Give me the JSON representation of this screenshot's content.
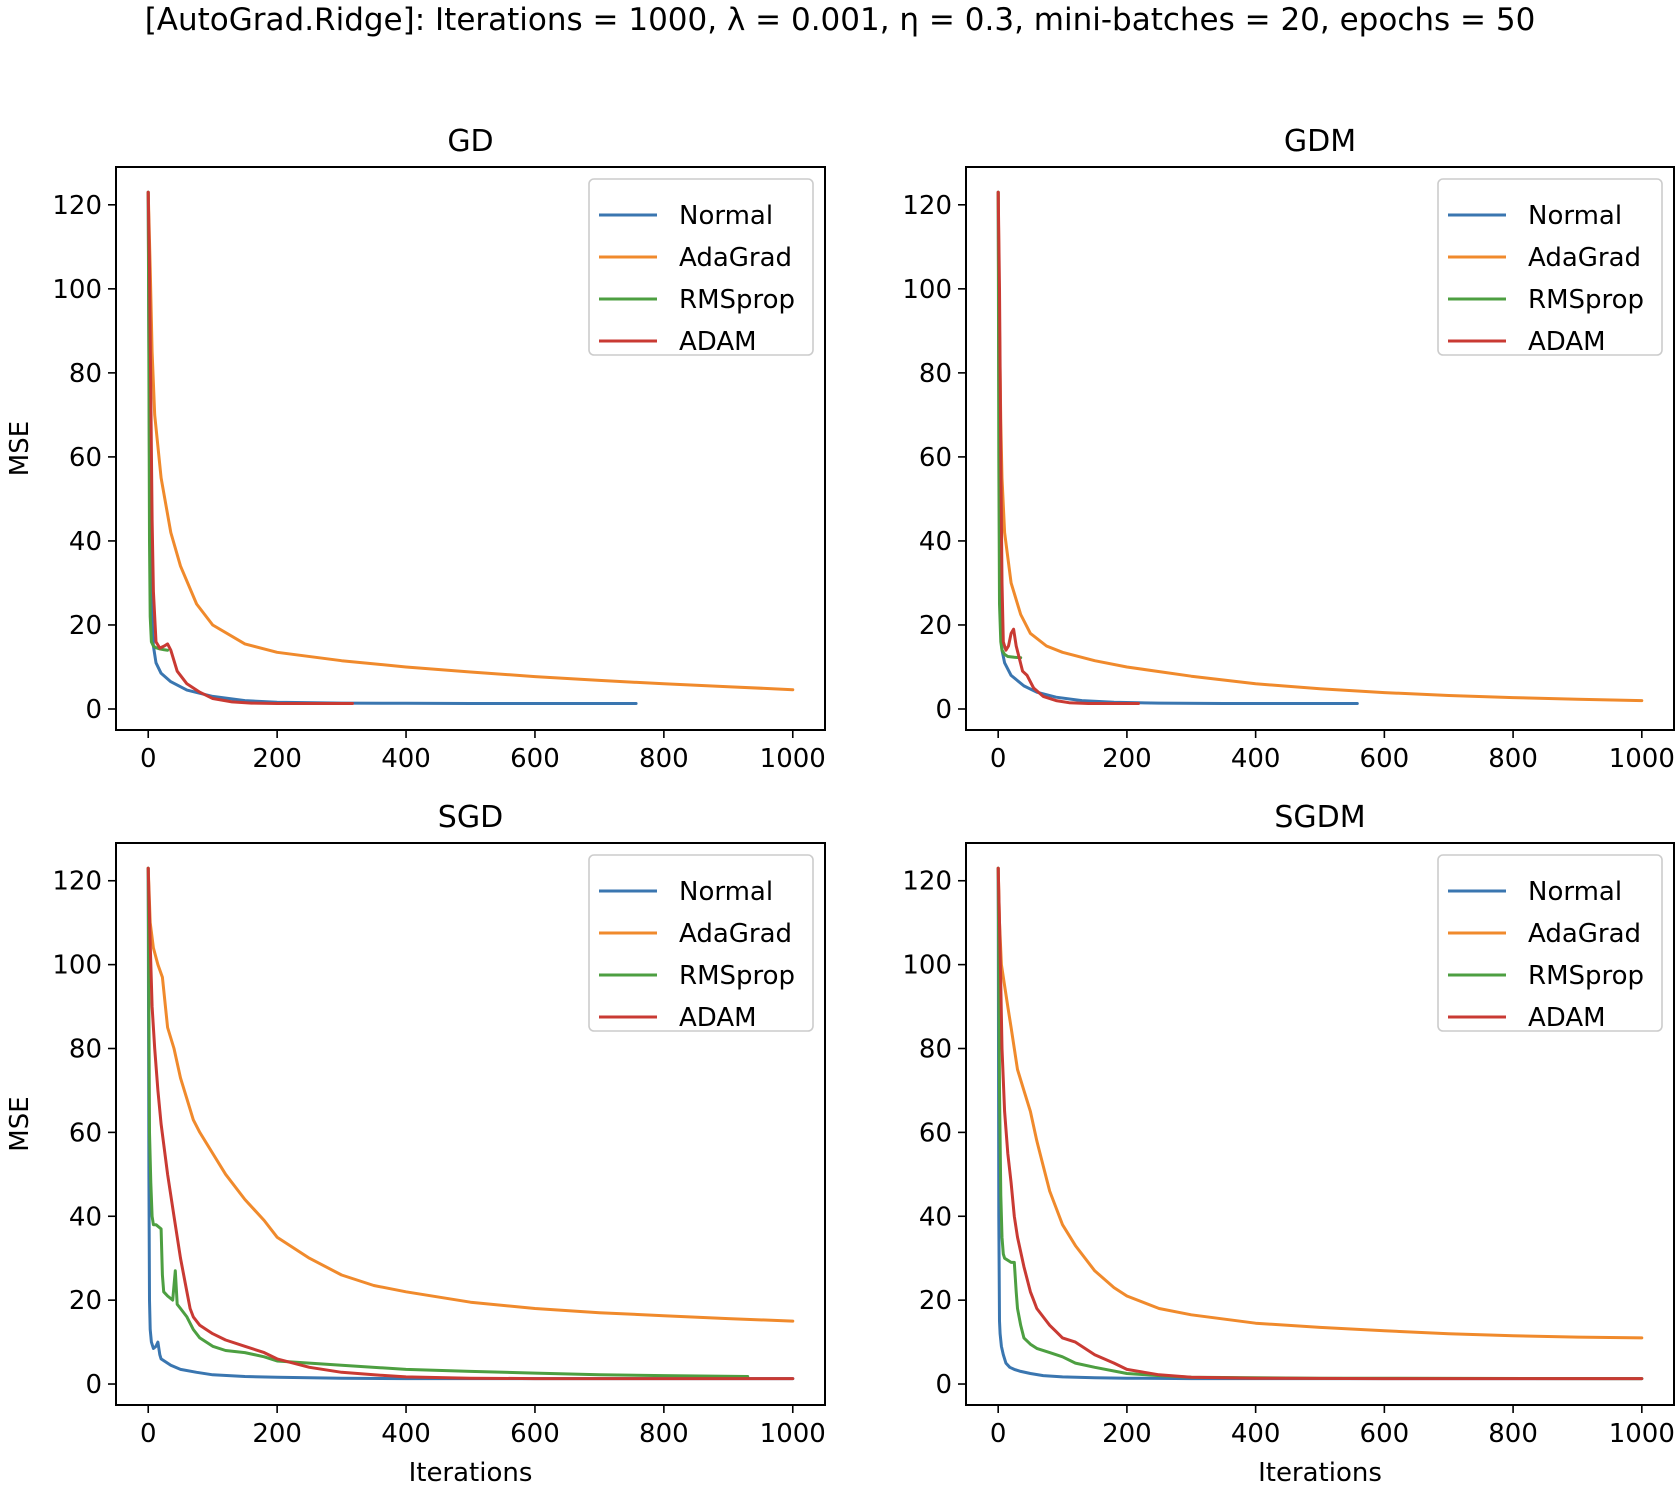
{
  "suptitle": "[AutoGrad.Ridge]: Iterations = 1000, λ = 0.001, η = 0.3, mini-batches = 20, epochs = 50",
  "colors": {
    "Normal": "#3a76b0",
    "AdaGrad": "#f08a2c",
    "RMSprop": "#4d9f41",
    "ADAM": "#c93a33"
  },
  "chart_data": [
    {
      "type": "line",
      "title": "GD",
      "xlabel": "",
      "ylabel": "MSE",
      "xlim": [
        -50,
        1050
      ],
      "ylim": [
        -5,
        129
      ],
      "xticks": [
        0,
        200,
        400,
        600,
        800,
        1000
      ],
      "yticks": [
        0,
        20,
        40,
        60,
        80,
        100,
        120
      ],
      "legend_position": "upper right",
      "series": [
        {
          "name": "Normal",
          "x": [
            0,
            2,
            5,
            8,
            12,
            20,
            35,
            60,
            100,
            150,
            200,
            300,
            400,
            500,
            757
          ],
          "y": [
            123,
            60,
            25,
            15,
            11,
            8.5,
            6.5,
            4.5,
            3,
            2,
            1.6,
            1.4,
            1.35,
            1.3,
            1.3
          ]
        },
        {
          "name": "AdaGrad",
          "x": [
            0,
            3,
            6,
            10,
            20,
            35,
            50,
            75,
            100,
            150,
            200,
            300,
            400,
            500,
            600,
            700,
            800,
            900,
            1000
          ],
          "y": [
            123,
            105,
            85,
            70,
            55,
            42,
            34,
            25,
            20,
            15.5,
            13.5,
            11.5,
            10,
            8.8,
            7.7,
            6.8,
            6,
            5.3,
            4.6
          ]
        },
        {
          "name": "RMSprop",
          "x": [
            0,
            1,
            2,
            3,
            5,
            8,
            12,
            18,
            25,
            30
          ],
          "y": [
            123,
            80,
            40,
            22,
            16,
            15,
            14.6,
            14.3,
            14.1,
            14
          ]
        },
        {
          "name": "ADAM",
          "x": [
            0,
            2,
            4,
            6,
            8,
            12,
            18,
            25,
            30,
            35,
            45,
            60,
            80,
            100,
            130,
            160,
            200,
            250,
            317
          ],
          "y": [
            123,
            105,
            75,
            45,
            28,
            16,
            14.5,
            15,
            15.5,
            14,
            9,
            6,
            4,
            2.5,
            1.7,
            1.4,
            1.3,
            1.3,
            1.3
          ]
        }
      ]
    },
    {
      "type": "line",
      "title": "GDM",
      "xlabel": "",
      "ylabel": "",
      "xlim": [
        -50,
        1050
      ],
      "ylim": [
        -5,
        129
      ],
      "xticks": [
        0,
        200,
        400,
        600,
        800,
        1000
      ],
      "yticks": [
        0,
        20,
        40,
        60,
        80,
        100,
        120
      ],
      "legend_position": "upper right",
      "series": [
        {
          "name": "Normal",
          "x": [
            0,
            2,
            4,
            6,
            10,
            20,
            40,
            60,
            90,
            130,
            180,
            250,
            350,
            450,
            558
          ],
          "y": [
            123,
            40,
            20,
            14,
            11,
            8,
            5.5,
            4,
            2.8,
            2,
            1.6,
            1.4,
            1.3,
            1.3,
            1.3
          ]
        },
        {
          "name": "AdaGrad",
          "x": [
            0,
            2,
            4,
            6,
            10,
            20,
            35,
            50,
            75,
            100,
            150,
            200,
            300,
            400,
            500,
            600,
            700,
            800,
            900,
            1000
          ],
          "y": [
            123,
            90,
            68,
            55,
            42,
            30,
            22.5,
            18,
            15,
            13.5,
            11.5,
            10,
            7.8,
            6,
            4.8,
            3.9,
            3.2,
            2.7,
            2.3,
            2
          ]
        },
        {
          "name": "RMSprop",
          "x": [
            0,
            1,
            2,
            4,
            6,
            10,
            15,
            25,
            35
          ],
          "y": [
            123,
            60,
            25,
            16,
            14,
            13,
            12.5,
            12.3,
            12.2
          ]
        },
        {
          "name": "ADAM",
          "x": [
            0,
            2,
            4,
            6,
            8,
            12,
            16,
            20,
            24,
            28,
            33,
            38,
            45,
            55,
            70,
            90,
            110,
            140,
            180,
            218
          ],
          "y": [
            123,
            100,
            60,
            30,
            16,
            14,
            15,
            18,
            19,
            15,
            12,
            9,
            8,
            5,
            3,
            2,
            1.5,
            1.3,
            1.3,
            1.3
          ]
        }
      ]
    },
    {
      "type": "line",
      "title": "SGD",
      "xlabel": "Iterations",
      "ylabel": "MSE",
      "xlim": [
        -50,
        1050
      ],
      "ylim": [
        -5,
        129
      ],
      "xticks": [
        0,
        200,
        400,
        600,
        800,
        1000
      ],
      "yticks": [
        0,
        20,
        40,
        60,
        80,
        100,
        120
      ],
      "legend_position": "upper right",
      "series": [
        {
          "name": "Normal",
          "x": [
            0,
            1,
            2,
            3,
            5,
            8,
            12,
            15,
            18,
            20,
            25,
            35,
            50,
            75,
            100,
            150,
            200,
            300,
            400,
            500,
            700,
            1000
          ],
          "y": [
            123,
            50,
            20,
            13,
            10,
            8.5,
            9,
            10,
            7,
            6,
            5.5,
            4.5,
            3.5,
            2.8,
            2.2,
            1.8,
            1.6,
            1.4,
            1.3,
            1.3,
            1.3,
            1.3
          ]
        },
        {
          "name": "AdaGrad",
          "x": [
            0,
            3,
            8,
            15,
            22,
            30,
            40,
            50,
            60,
            70,
            80,
            100,
            120,
            150,
            180,
            200,
            250,
            300,
            350,
            400,
            500,
            600,
            700,
            800,
            900,
            1000
          ],
          "y": [
            123,
            110,
            104,
            100,
            97,
            85,
            80,
            73,
            68,
            63,
            60,
            55,
            50,
            44,
            39,
            35,
            30,
            26,
            23.5,
            22,
            19.5,
            18,
            17,
            16.3,
            15.6,
            15
          ]
        },
        {
          "name": "RMSprop",
          "x": [
            0,
            2,
            4,
            6,
            8,
            12,
            20,
            22,
            24,
            30,
            38,
            42,
            45,
            50,
            60,
            70,
            80,
            100,
            120,
            150,
            180,
            200,
            250,
            300,
            400,
            500,
            600,
            700,
            800,
            930
          ],
          "y": [
            123,
            60,
            48,
            40,
            38,
            38,
            37,
            26,
            22,
            21,
            20,
            27,
            19,
            18,
            16,
            13,
            11,
            9,
            8,
            7.5,
            6.5,
            5.5,
            5,
            4.5,
            3.5,
            3,
            2.6,
            2.2,
            2,
            1.8
          ]
        },
        {
          "name": "ADAM",
          "x": [
            0,
            3,
            6,
            10,
            15,
            20,
            30,
            40,
            50,
            60,
            65,
            70,
            80,
            90,
            100,
            120,
            150,
            180,
            200,
            250,
            300,
            350,
            400,
            500,
            600,
            700,
            800,
            1000
          ],
          "y": [
            123,
            105,
            90,
            80,
            70,
            62,
            50,
            40,
            30,
            22,
            18,
            16,
            14,
            13,
            12,
            10.5,
            9,
            7.5,
            6,
            4,
            2.8,
            2.2,
            1.7,
            1.4,
            1.3,
            1.3,
            1.3,
            1.3
          ]
        }
      ]
    },
    {
      "type": "line",
      "title": "SGDM",
      "xlabel": "Iterations",
      "ylabel": "",
      "xlim": [
        -50,
        1050
      ],
      "ylim": [
        -5,
        129
      ],
      "xticks": [
        0,
        200,
        400,
        600,
        800,
        1000
      ],
      "yticks": [
        0,
        20,
        40,
        60,
        80,
        100,
        120
      ],
      "legend_position": "upper right",
      "series": [
        {
          "name": "Normal",
          "x": [
            0,
            1,
            2,
            3,
            5,
            8,
            12,
            18,
            25,
            35,
            50,
            70,
            100,
            150,
            200,
            300,
            500,
            1000
          ],
          "y": [
            123,
            40,
            15,
            12,
            9,
            7,
            5,
            4,
            3.5,
            3,
            2.5,
            2,
            1.7,
            1.5,
            1.4,
            1.3,
            1.3,
            1.3
          ]
        },
        {
          "name": "AdaGrad",
          "x": [
            0,
            2,
            5,
            10,
            15,
            20,
            25,
            30,
            40,
            50,
            60,
            70,
            80,
            90,
            100,
            120,
            150,
            180,
            200,
            250,
            300,
            400,
            500,
            600,
            700,
            800,
            900,
            1000
          ],
          "y": [
            123,
            110,
            100,
            95,
            90,
            85,
            80,
            75,
            70,
            65,
            58,
            52,
            46,
            42,
            38,
            33,
            27,
            23,
            21,
            18,
            16.5,
            14.5,
            13.5,
            12.7,
            12,
            11.5,
            11.2,
            11
          ]
        },
        {
          "name": "RMSprop",
          "x": [
            0,
            2,
            4,
            6,
            8,
            10,
            15,
            20,
            25,
            28,
            30,
            35,
            40,
            50,
            60,
            80,
            100,
            120,
            150,
            200,
            250,
            300,
            500,
            1000
          ],
          "y": [
            123,
            70,
            45,
            35,
            31,
            30,
            29.5,
            29,
            29,
            22,
            18,
            14,
            11,
            9.5,
            8.5,
            7.5,
            6.5,
            5,
            4,
            2.5,
            2,
            1.6,
            1.4,
            1.3
          ]
        },
        {
          "name": "ADAM",
          "x": [
            0,
            2,
            4,
            6,
            10,
            15,
            20,
            25,
            30,
            40,
            50,
            55,
            60,
            70,
            80,
            90,
            100,
            120,
            150,
            180,
            200,
            250,
            300,
            400,
            600,
            1000
          ],
          "y": [
            123,
            110,
            95,
            80,
            65,
            55,
            48,
            40,
            35,
            28,
            22,
            20,
            18,
            16,
            14,
            12.5,
            11,
            10,
            7,
            5,
            3.5,
            2.2,
            1.6,
            1.4,
            1.3,
            1.3
          ]
        }
      ]
    }
  ]
}
